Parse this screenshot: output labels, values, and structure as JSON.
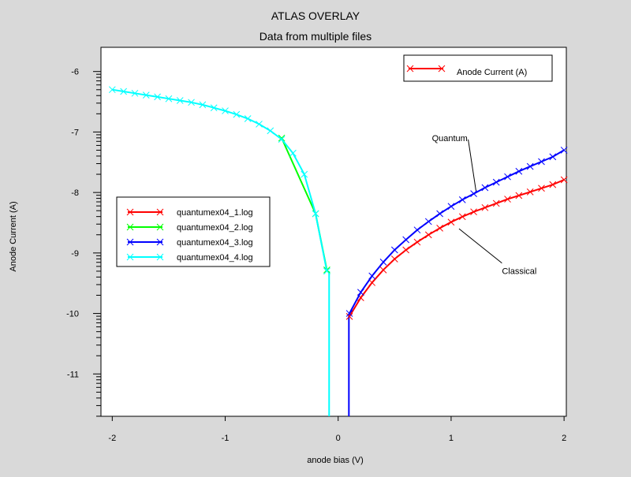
{
  "chart_data": {
    "type": "line",
    "title": "ATLAS OVERLAY",
    "subtitle": "Data from multiple files",
    "xlabel": "anode bias (V)",
    "ylabel": "Anode Current (A)",
    "xlim": [
      -2.1,
      2.02
    ],
    "ylim": [
      -11.7,
      -5.6
    ],
    "x_ticks": [
      -2,
      -1,
      0,
      1,
      2
    ],
    "y_ticks": [
      -6,
      -7,
      -8,
      -9,
      -10,
      -11
    ],
    "y_scale": "log10",
    "grid": false,
    "top_legend": {
      "position": "top-right",
      "label": "Anode Current (A)",
      "color": "#ff0000"
    },
    "file_legend": {
      "position": "center-left"
    },
    "annotations": [
      {
        "text": "Quantum",
        "x": 0.83,
        "y": -7.15,
        "arrow_to": [
          1.22,
          -7.97
        ]
      },
      {
        "text": "Classical",
        "x": 1.45,
        "y": -9.35,
        "arrow_to": [
          1.07,
          -8.6
        ]
      }
    ],
    "series": [
      {
        "name": "quantumex04_1.log",
        "color": "#ff0000",
        "x": [
          0.1,
          0.2,
          0.3,
          0.4,
          0.5,
          0.6,
          0.7,
          0.8,
          0.9,
          1.0,
          1.1,
          1.2,
          1.3,
          1.4,
          1.5,
          1.6,
          1.7,
          1.8,
          1.9,
          2.0
        ],
        "y": [
          -10.05,
          -9.74,
          -9.49,
          -9.28,
          -9.1,
          -8.95,
          -8.82,
          -8.7,
          -8.59,
          -8.49,
          -8.4,
          -8.32,
          -8.25,
          -8.18,
          -8.11,
          -8.05,
          -7.99,
          -7.93,
          -7.87,
          -7.79
        ]
      },
      {
        "name": "quantumex04_2.log",
        "color": "#00ff00",
        "x": [
          -0.5,
          -0.2,
          -0.1
        ],
        "y": [
          -7.1,
          -8.35,
          -9.28
        ]
      },
      {
        "name": "quantumex04_3.log",
        "color": "#0000ff",
        "x": [
          0.1,
          0.2,
          0.3,
          0.4,
          0.5,
          0.6,
          0.7,
          0.8,
          0.9,
          1.0,
          1.1,
          1.2,
          1.3,
          1.4,
          1.5,
          1.6,
          1.7,
          1.8,
          1.9,
          2.0
        ],
        "y": [
          -10.0,
          -9.65,
          -9.38,
          -9.15,
          -8.95,
          -8.78,
          -8.62,
          -8.48,
          -8.35,
          -8.23,
          -8.12,
          -8.02,
          -7.92,
          -7.83,
          -7.74,
          -7.65,
          -7.57,
          -7.49,
          -7.41,
          -7.3
        ]
      },
      {
        "name": "quantumex04_4.log",
        "color": "#00ffff",
        "x": [
          -2.0,
          -1.9,
          -1.8,
          -1.7,
          -1.6,
          -1.5,
          -1.4,
          -1.3,
          -1.2,
          -1.1,
          -1.0,
          -0.9,
          -0.8,
          -0.7,
          -0.6,
          -0.5,
          -0.4,
          -0.3,
          -0.2,
          -0.1
        ],
        "y": [
          -6.3,
          -6.33,
          -6.36,
          -6.39,
          -6.42,
          -6.45,
          -6.48,
          -6.51,
          -6.55,
          -6.6,
          -6.65,
          -6.71,
          -6.78,
          -6.87,
          -6.98,
          -7.12,
          -7.35,
          -7.7,
          -8.35,
          -9.3
        ]
      }
    ],
    "drop_lines": [
      {
        "x": -0.08,
        "y_from": -9.3,
        "y_to": -11.7,
        "color": "#00ffff"
      },
      {
        "x": 0.095,
        "y_from": -10.0,
        "y_to": -11.7,
        "color": "#0000ff"
      }
    ]
  }
}
